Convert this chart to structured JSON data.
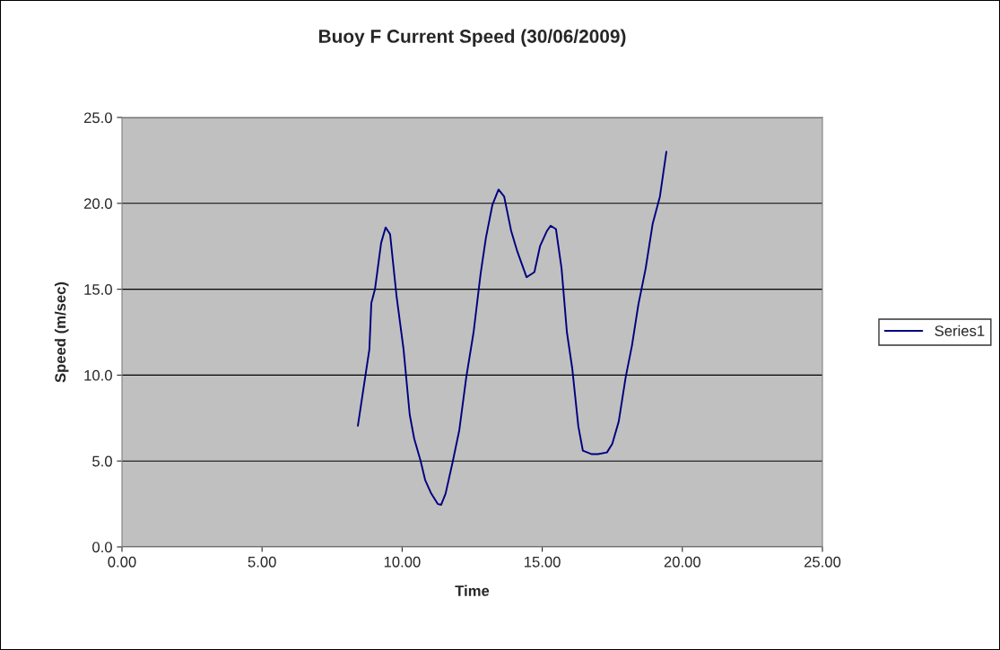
{
  "chart_data": {
    "type": "line",
    "title": "Buoy F Current Speed (30/06/2009)",
    "xlabel": "Time",
    "ylabel": "Speed (m/sec)",
    "xlim": [
      0,
      25
    ],
    "xticks": [
      {
        "value": 0,
        "label": "0.00"
      },
      {
        "value": 5,
        "label": "5.00"
      },
      {
        "value": 10,
        "label": "10.00"
      },
      {
        "value": 15,
        "label": "15.00"
      },
      {
        "value": 20,
        "label": "20.00"
      },
      {
        "value": 25,
        "label": "25.00"
      }
    ],
    "ylim": [
      0,
      25
    ],
    "yticks": [
      {
        "value": 0,
        "label": "0.0"
      },
      {
        "value": 5,
        "label": "5.0"
      },
      {
        "value": 10,
        "label": "10.0"
      },
      {
        "value": 15,
        "label": "15.0"
      },
      {
        "value": 20,
        "label": "20.0"
      },
      {
        "value": 25,
        "label": "25.0"
      }
    ],
    "grid": "y",
    "legend": "right",
    "marker": "none",
    "line_style": "solid",
    "series": [
      {
        "name": "Series1",
        "color": "#000080",
        "x": [
          8.42,
          8.83,
          8.9,
          9.03,
          9.25,
          9.41,
          9.57,
          9.8,
          10.05,
          10.27,
          10.43,
          10.66,
          10.82,
          11.04,
          11.27,
          11.39,
          11.55,
          11.81,
          12.04,
          12.29,
          12.55,
          12.8,
          12.99,
          13.22,
          13.44,
          13.64,
          13.89,
          14.11,
          14.44,
          14.72,
          14.92,
          15.17,
          15.3,
          15.49,
          15.69,
          15.88,
          16.07,
          16.29,
          16.45,
          16.77,
          16.99,
          17.31,
          17.5,
          17.73,
          17.98,
          18.2,
          18.43,
          18.69,
          18.94,
          19.2,
          19.43
        ],
        "values": [
          7.05,
          11.5,
          14.2,
          15.0,
          17.7,
          18.6,
          18.2,
          14.6,
          11.5,
          7.7,
          6.3,
          5.0,
          3.9,
          3.1,
          2.5,
          2.45,
          3.1,
          5.0,
          6.8,
          9.9,
          12.5,
          15.9,
          18.0,
          19.9,
          20.8,
          20.4,
          18.4,
          17.2,
          15.7,
          16.0,
          17.5,
          18.4,
          18.7,
          18.5,
          16.2,
          12.5,
          10.4,
          7.0,
          5.6,
          5.4,
          5.4,
          5.5,
          6.0,
          7.3,
          9.9,
          11.7,
          14.1,
          16.2,
          18.8,
          20.4,
          23.0
        ]
      }
    ]
  }
}
